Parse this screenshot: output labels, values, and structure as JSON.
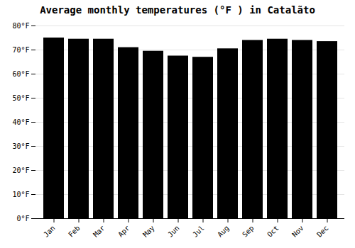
{
  "chart_data": {
    "type": "bar",
    "title": "Average monthly temperatures (°F ) in Catalãto",
    "categories": [
      "Jan",
      "Feb",
      "Mar",
      "Apr",
      "May",
      "Jun",
      "Jul",
      "Aug",
      "Sep",
      "Oct",
      "Nov",
      "Dec"
    ],
    "values": [
      75.0,
      74.5,
      74.5,
      71.0,
      69.5,
      67.5,
      67.0,
      70.5,
      74.0,
      74.5,
      74.0,
      73.5
    ],
    "ylim": [
      0,
      80
    ],
    "yticks": [
      {
        "value": 0,
        "label": "0°F"
      },
      {
        "value": 10,
        "label": "10°F"
      },
      {
        "value": 20,
        "label": "20°F"
      },
      {
        "value": 30,
        "label": "30°F"
      },
      {
        "value": 40,
        "label": "40°F"
      },
      {
        "value": 50,
        "label": "50°F"
      },
      {
        "value": 60,
        "label": "60°F"
      },
      {
        "value": 70,
        "label": "70°F"
      },
      {
        "value": 80,
        "label": "80°F"
      }
    ],
    "grid": true
  }
}
